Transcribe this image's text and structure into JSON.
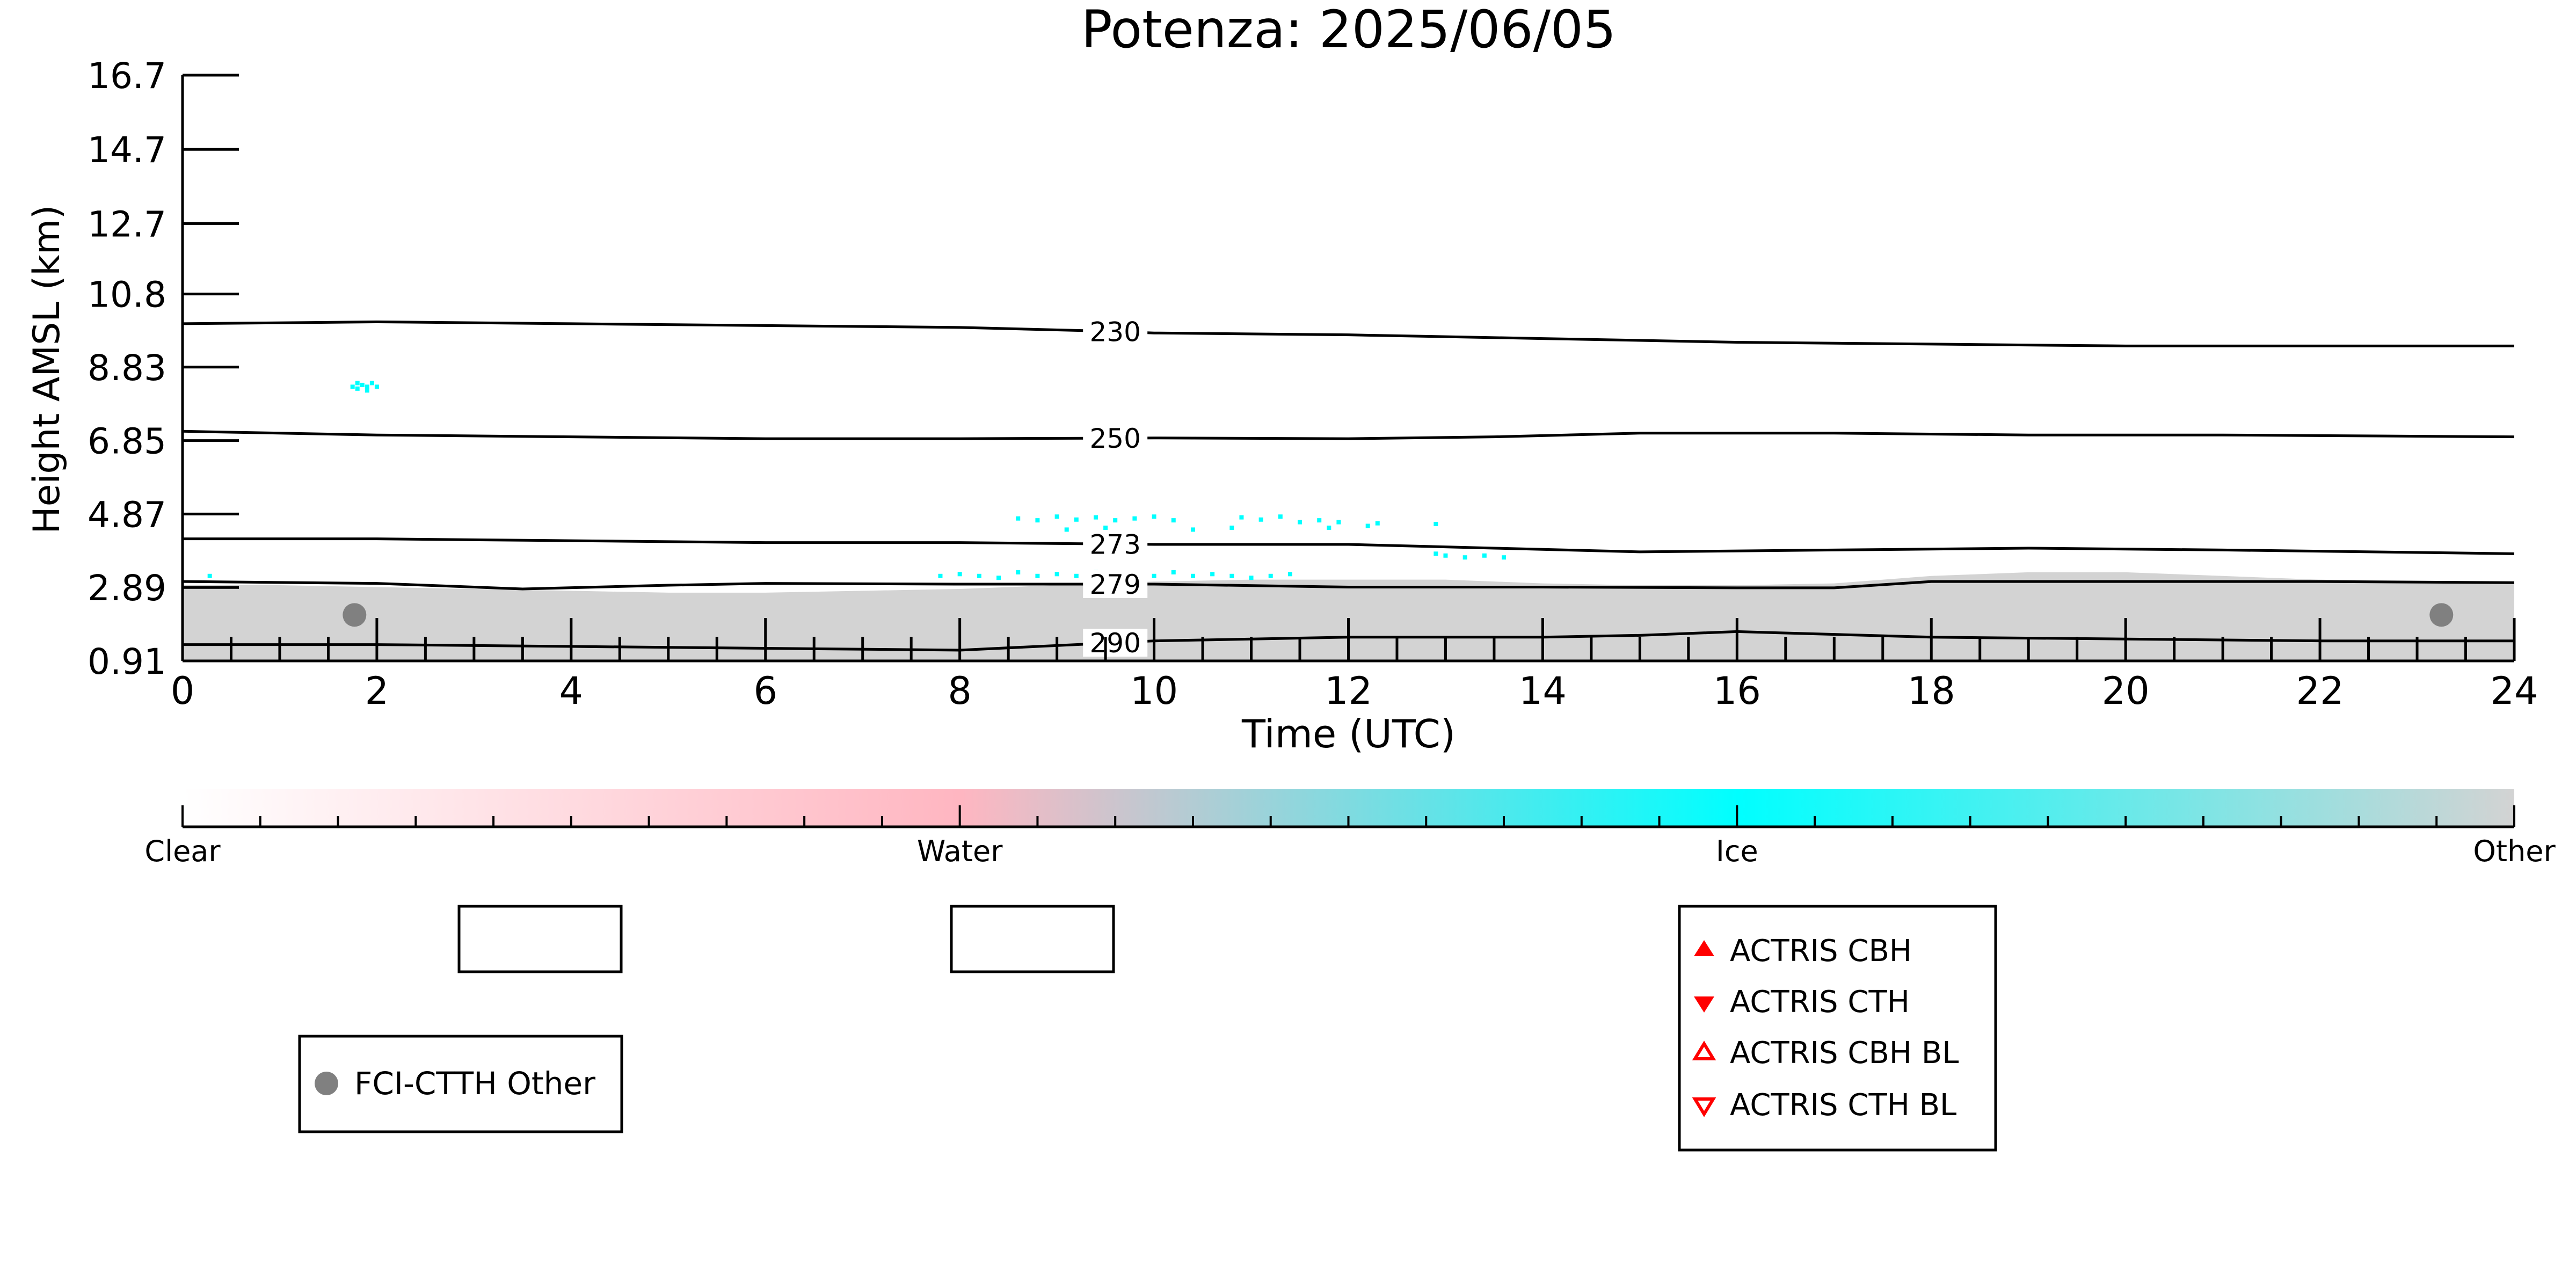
{
  "chart_data": {
    "type": "heatmap",
    "title": "Potenza: 2025/06/05",
    "xlabel": "Time (UTC)",
    "ylabel": "Height AMSL (km)",
    "xlim": [
      0,
      24
    ],
    "ylim": [
      0.91,
      16.7
    ],
    "x_ticks": [
      0,
      2,
      4,
      6,
      8,
      10,
      12,
      14,
      16,
      18,
      20,
      22,
      24
    ],
    "x_tick_labels": [
      "0",
      "2",
      "4",
      "6",
      "8",
      "10",
      "12",
      "14",
      "16",
      "18",
      "20",
      "22",
      "24"
    ],
    "y_ticks": [
      0.91,
      2.89,
      4.87,
      6.85,
      8.83,
      10.8,
      12.7,
      14.7,
      16.7
    ],
    "y_tick_labels": [
      "0.91",
      "2.89",
      "4.87",
      "6.85",
      "8.83",
      "10.8",
      "12.7",
      "14.7",
      "16.7"
    ],
    "colorbar": {
      "labels": [
        "Clear",
        "Water",
        "Ice",
        "Other"
      ],
      "colors": [
        "#ffffff",
        "#ffb6c1",
        "#00ffff",
        "#d3d3d3"
      ]
    },
    "cloud_regions": [
      {
        "category": "Other",
        "color": "#d3d3d3",
        "x": [
          0,
          1,
          2,
          3,
          4,
          5,
          6,
          7,
          8,
          9,
          10,
          11,
          12,
          13,
          14,
          15,
          16,
          17,
          18,
          19,
          20,
          21,
          22,
          23,
          24
        ],
        "top": [
          2.95,
          2.95,
          2.9,
          2.85,
          2.8,
          2.75,
          2.75,
          2.8,
          2.85,
          2.95,
          3.05,
          3.1,
          3.1,
          3.1,
          3.0,
          2.95,
          2.95,
          3.0,
          3.2,
          3.3,
          3.3,
          3.2,
          3.1,
          3.05,
          3.0
        ],
        "bottom": 0.91
      }
    ],
    "ice_points": [
      [
        1.75,
        8.3
      ],
      [
        1.8,
        8.25
      ],
      [
        1.85,
        8.35
      ],
      [
        1.9,
        8.3
      ],
      [
        1.95,
        8.4
      ],
      [
        2.0,
        8.3
      ],
      [
        1.8,
        8.4
      ],
      [
        1.9,
        8.2
      ],
      [
        0.28,
        3.2
      ],
      [
        8.6,
        4.75
      ],
      [
        8.8,
        4.7
      ],
      [
        9.0,
        4.8
      ],
      [
        9.2,
        4.72
      ],
      [
        9.4,
        4.78
      ],
      [
        9.6,
        4.7
      ],
      [
        9.8,
        4.75
      ],
      [
        10.0,
        4.8
      ],
      [
        10.2,
        4.7
      ],
      [
        10.9,
        4.78
      ],
      [
        11.1,
        4.72
      ],
      [
        11.3,
        4.8
      ],
      [
        11.5,
        4.65
      ],
      [
        11.7,
        4.7
      ],
      [
        11.9,
        4.65
      ],
      [
        12.3,
        4.62
      ],
      [
        12.9,
        4.6
      ],
      [
        9.1,
        4.45
      ],
      [
        9.5,
        4.5
      ],
      [
        10.4,
        4.45
      ],
      [
        10.8,
        4.5
      ],
      [
        11.8,
        4.5
      ],
      [
        12.2,
        4.55
      ],
      [
        13.0,
        3.75
      ],
      [
        13.2,
        3.7
      ],
      [
        13.4,
        3.75
      ],
      [
        13.6,
        3.7
      ],
      [
        12.9,
        3.8
      ],
      [
        7.8,
        3.2
      ],
      [
        8.0,
        3.25
      ],
      [
        8.2,
        3.2
      ],
      [
        8.4,
        3.15
      ],
      [
        8.6,
        3.3
      ],
      [
        8.8,
        3.2
      ],
      [
        9.0,
        3.25
      ],
      [
        9.2,
        3.2
      ],
      [
        9.4,
        3.3
      ],
      [
        9.6,
        3.2
      ],
      [
        9.8,
        3.25
      ],
      [
        10.0,
        3.2
      ],
      [
        10.2,
        3.3
      ],
      [
        10.4,
        3.2
      ],
      [
        10.6,
        3.25
      ],
      [
        10.8,
        3.2
      ],
      [
        11.0,
        3.15
      ],
      [
        11.2,
        3.2
      ],
      [
        11.4,
        3.25
      ]
    ],
    "temperature_contours": [
      {
        "label": "230",
        "x": [
          0,
          2,
          4,
          6,
          8,
          9.5,
          10,
          12,
          14,
          16,
          18,
          20,
          22,
          24
        ],
        "y": [
          10.0,
          10.05,
          10.0,
          9.95,
          9.9,
          9.8,
          9.75,
          9.7,
          9.6,
          9.5,
          9.45,
          9.4,
          9.4,
          9.4
        ],
        "label_x": 9.6
      },
      {
        "label": "250",
        "x": [
          0,
          2,
          4,
          6,
          8,
          10,
          12,
          13.5,
          15,
          17,
          19,
          21,
          24
        ],
        "y": [
          7.1,
          7.0,
          6.95,
          6.9,
          6.9,
          6.92,
          6.9,
          6.95,
          7.05,
          7.05,
          7.0,
          7.0,
          6.95
        ],
        "label_x": 9.6
      },
      {
        "label": "273",
        "x": [
          0,
          2,
          4,
          6,
          8,
          10,
          12,
          13.5,
          15,
          17,
          19,
          21,
          24
        ],
        "y": [
          4.2,
          4.2,
          4.15,
          4.1,
          4.1,
          4.05,
          4.05,
          3.95,
          3.85,
          3.9,
          3.95,
          3.9,
          3.8
        ],
        "label_x": 9.6
      },
      {
        "label": "279",
        "x": [
          0,
          2,
          3.5,
          5,
          6,
          8,
          10,
          12,
          14,
          16,
          17,
          18,
          20,
          22,
          24
        ],
        "y": [
          3.05,
          3.0,
          2.85,
          2.95,
          3.0,
          2.98,
          2.98,
          2.9,
          2.9,
          2.88,
          2.88,
          3.05,
          3.05,
          3.05,
          3.02
        ],
        "label_x": 9.6
      },
      {
        "label": "290",
        "x": [
          0,
          2,
          4,
          6,
          8,
          10,
          12,
          14,
          15,
          16,
          18,
          20,
          22,
          24
        ],
        "y": [
          1.35,
          1.35,
          1.3,
          1.25,
          1.2,
          1.45,
          1.55,
          1.55,
          1.6,
          1.7,
          1.55,
          1.5,
          1.45,
          1.45
        ],
        "label_x": 9.6
      }
    ],
    "fci_ctth_other": [
      {
        "time": 1.77,
        "height": 2.15
      },
      {
        "time": 23.25,
        "height": 2.15
      }
    ],
    "legends": {
      "fci": {
        "label": "FCI-CTTH Other",
        "color": "#808080"
      },
      "actris": [
        {
          "label": "ACTRIS CBH",
          "marker": "triangle-up-filled",
          "color": "#ff0000"
        },
        {
          "label": "ACTRIS CTH",
          "marker": "triangle-down-filled",
          "color": "#ff0000"
        },
        {
          "label": "ACTRIS CBH BL",
          "marker": "triangle-up-open",
          "color": "#ff0000"
        },
        {
          "label": "ACTRIS CTH BL",
          "marker": "triangle-down-open",
          "color": "#ff0000"
        }
      ]
    }
  }
}
